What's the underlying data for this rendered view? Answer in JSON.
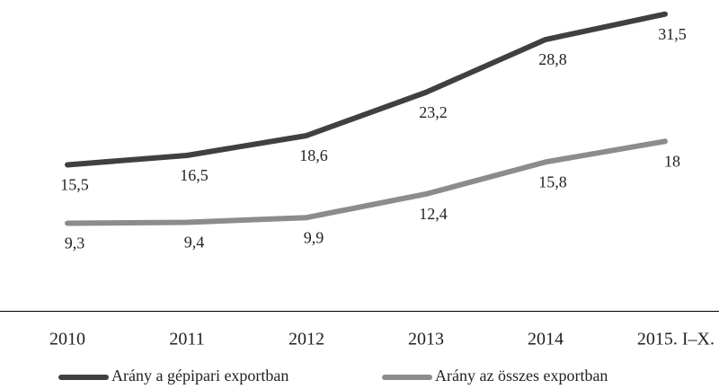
{
  "chart_data": {
    "type": "line",
    "categories": [
      "2010",
      "2011",
      "2012",
      "2013",
      "2014",
      "2015. I–X."
    ],
    "series": [
      {
        "name": "Arány a gépipari exportban",
        "color": "#404040",
        "values": [
          15.5,
          16.5,
          18.6,
          23.2,
          28.8,
          31.5
        ],
        "value_labels": [
          "15,5",
          "16,5",
          "18,6",
          "23,2",
          "28,8",
          "31,5"
        ]
      },
      {
        "name": "Arány az összes exportban",
        "color": "#8c8c8c",
        "values": [
          9.3,
          9.4,
          9.9,
          12.4,
          15.8,
          18
        ],
        "value_labels": [
          "9,3",
          "9,4",
          "9,9",
          "12,4",
          "15,8",
          "18"
        ]
      }
    ],
    "ylim": [
      0,
      33
    ]
  }
}
